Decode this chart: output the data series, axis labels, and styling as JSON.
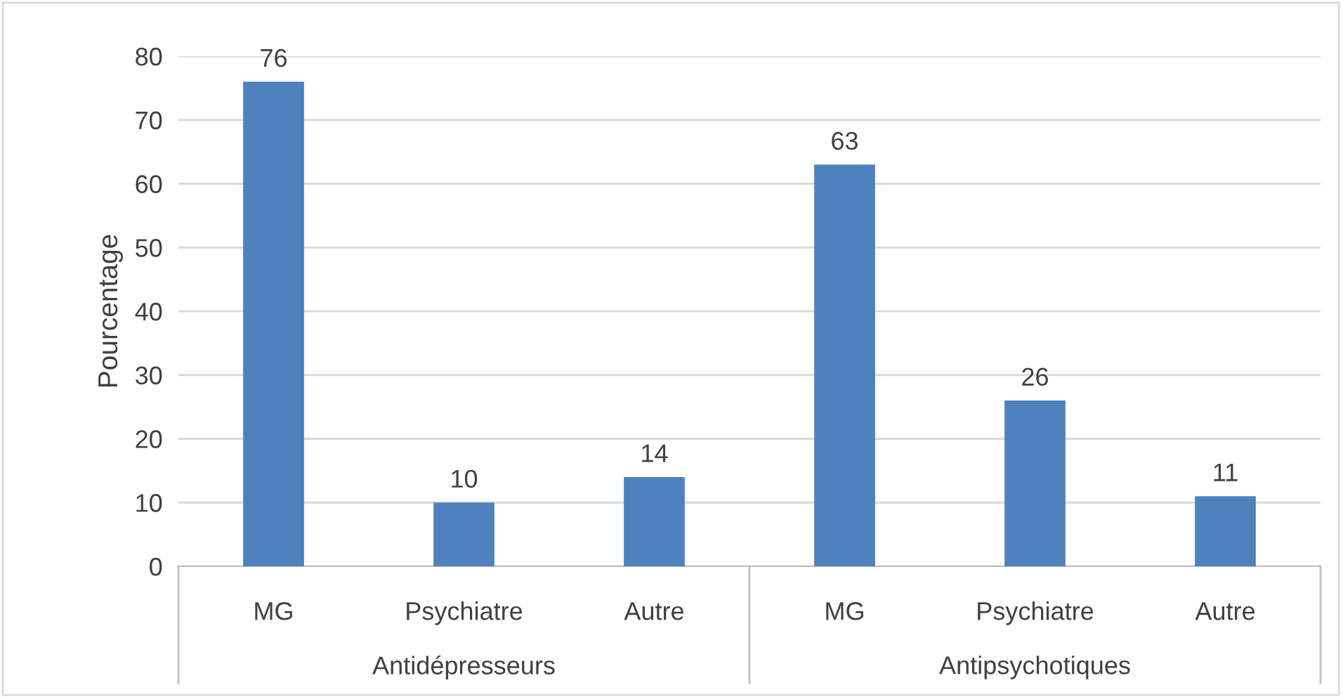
{
  "chart_data": {
    "type": "bar",
    "ylabel": "Pourcentage",
    "categories": [
      "MG",
      "Psychiatre",
      "Autre",
      "MG",
      "Psychiatre",
      "Autre"
    ],
    "values": [
      76,
      10,
      14,
      63,
      26,
      11
    ],
    "color": "#4f81bd",
    "ylim": [
      0,
      80
    ],
    "yticks": [
      0,
      10,
      20,
      30,
      40,
      50,
      60,
      70,
      80
    ],
    "grid": "y",
    "data_labels": true,
    "annotations": [
      "Antidépresseurs",
      "Antipsychotiques"
    ]
  }
}
